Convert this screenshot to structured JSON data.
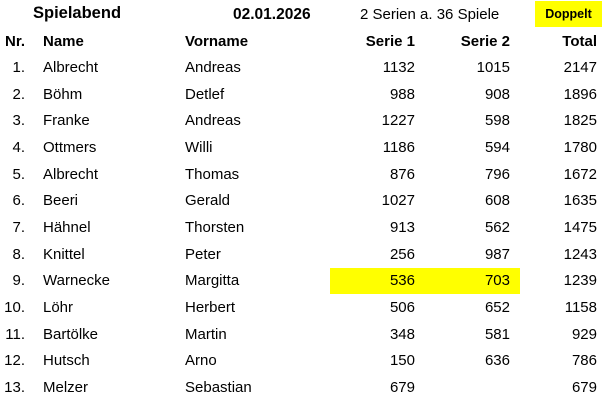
{
  "title": {
    "event": "Spielabend",
    "date": "02.01.2026",
    "series_info": "2 Serien a. 36 Spiele",
    "doppelt_label": "Doppelt"
  },
  "columns": {
    "nr": "Nr.",
    "name": "Name",
    "vorname": "Vorname",
    "serie1": "Serie 1",
    "serie2": "Serie 2",
    "total": "Total"
  },
  "colors": {
    "highlight": "#FFFF00",
    "text": "#000000",
    "background": "#FFFFFF"
  },
  "rows": [
    {
      "nr": "1.",
      "name": "Albrecht",
      "vorname": "Andreas",
      "serie1": "1132",
      "serie2": "1015",
      "total": "2147",
      "highlight": false
    },
    {
      "nr": "2.",
      "name": "Böhm",
      "vorname": "Detlef",
      "serie1": "988",
      "serie2": "908",
      "total": "1896",
      "highlight": false
    },
    {
      "nr": "3.",
      "name": "Franke",
      "vorname": "Andreas",
      "serie1": "1227",
      "serie2": "598",
      "total": "1825",
      "highlight": false
    },
    {
      "nr": "4.",
      "name": "Ottmers",
      "vorname": "Willi",
      "serie1": "1186",
      "serie2": "594",
      "total": "1780",
      "highlight": false
    },
    {
      "nr": "5.",
      "name": "Albrecht",
      "vorname": "Thomas",
      "serie1": "876",
      "serie2": "796",
      "total": "1672",
      "highlight": false
    },
    {
      "nr": "6.",
      "name": "Beeri",
      "vorname": "Gerald",
      "serie1": "1027",
      "serie2": "608",
      "total": "1635",
      "highlight": false
    },
    {
      "nr": "7.",
      "name": "Hähnel",
      "vorname": "Thorsten",
      "serie1": "913",
      "serie2": "562",
      "total": "1475",
      "highlight": false
    },
    {
      "nr": "8.",
      "name": "Knittel",
      "vorname": "Peter",
      "serie1": "256",
      "serie2": "987",
      "total": "1243",
      "highlight": false
    },
    {
      "nr": "9.",
      "name": "Warnecke",
      "vorname": "Margitta",
      "serie1": "536",
      "serie2": "703",
      "total": "1239",
      "highlight": true
    },
    {
      "nr": "10.",
      "name": "Löhr",
      "vorname": "Herbert",
      "serie1": "506",
      "serie2": "652",
      "total": "1158",
      "highlight": false
    },
    {
      "nr": "11.",
      "name": "Bartölke",
      "vorname": "Martin",
      "serie1": "348",
      "serie2": "581",
      "total": "929",
      "highlight": false
    },
    {
      "nr": "12.",
      "name": "Hutsch",
      "vorname": "Arno",
      "serie1": "150",
      "serie2": "636",
      "total": "786",
      "highlight": false
    },
    {
      "nr": "13.",
      "name": "Melzer",
      "vorname": "Sebastian",
      "serie1": "679",
      "serie2": "",
      "total": "679",
      "highlight": false
    }
  ]
}
